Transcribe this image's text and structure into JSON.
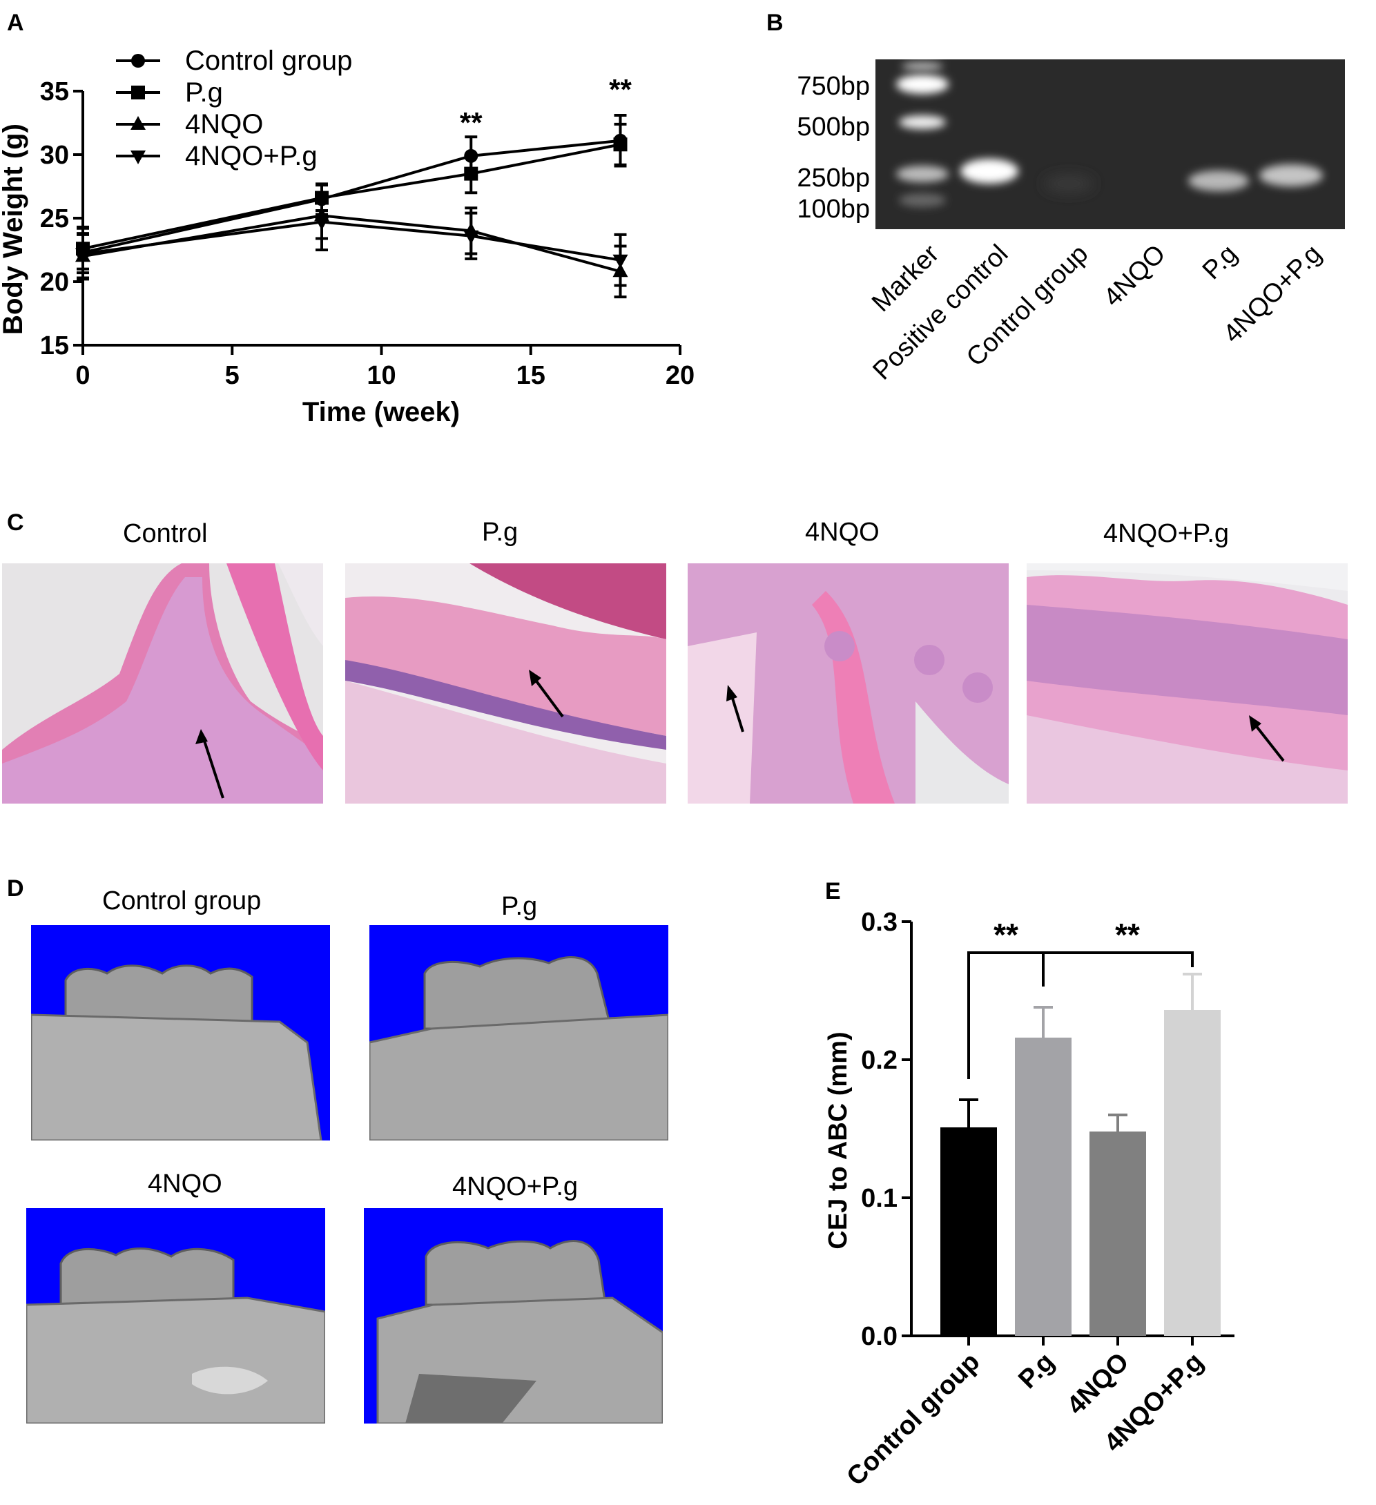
{
  "panels": {
    "a": "A",
    "b": "B",
    "c": "C",
    "d": "D",
    "e": "E"
  },
  "chart_a": {
    "type": "line",
    "xlabel": "Time (week)",
    "ylabel": "Body Weight (g)",
    "xlim": [
      0,
      20
    ],
    "ylim": [
      15,
      35
    ],
    "xticks": [
      "0",
      "5",
      "10",
      "15",
      "20"
    ],
    "yticks": [
      "15",
      "20",
      "25",
      "30",
      "35"
    ],
    "x": [
      0,
      8,
      13,
      18
    ],
    "legend_position": "top-left",
    "series": [
      {
        "name": "Control group",
        "marker": "circle",
        "values": [
          22.3,
          26.5,
          29.9,
          31.1
        ],
        "errors": [
          2.0,
          1.2,
          1.5,
          2.0
        ]
      },
      {
        "name": "P.g",
        "marker": "square",
        "values": [
          22.6,
          26.6,
          28.5,
          30.8
        ],
        "errors": [
          1.6,
          1.0,
          1.5,
          1.6
        ]
      },
      {
        "name": "4NQO",
        "marker": "triangle-up",
        "values": [
          22.0,
          25.2,
          24.0,
          20.8
        ],
        "errors": [
          1.8,
          1.8,
          1.8,
          2.0
        ]
      },
      {
        "name": "4NQO+P.g",
        "marker": "triangle-down",
        "values": [
          22.2,
          24.7,
          23.6,
          21.7
        ],
        "errors": [
          1.5,
          2.2,
          1.8,
          2.0
        ]
      }
    ],
    "annotations": [
      {
        "x": 13,
        "text": "**"
      },
      {
        "x": 18,
        "text": "**"
      }
    ]
  },
  "gel_b": {
    "markers": [
      "750bp",
      "500bp",
      "250bp",
      "100bp"
    ],
    "lanes": [
      "Marker",
      "Positive control",
      "Control group",
      "4NQO",
      "P.g",
      "4NQO+P.g"
    ]
  },
  "histology_c": {
    "titles": [
      "Control",
      "P.g",
      "4NQO",
      "4NQO+P.g"
    ]
  },
  "microct_d": {
    "titles": [
      "Control group",
      "P.g",
      "4NQO",
      "4NQO+P.g"
    ],
    "background": "#0000ff"
  },
  "chart_e": {
    "type": "bar",
    "ylabel": "CEJ to ABC (mm)",
    "categories": [
      "Control group",
      "P.g",
      "4NQO",
      "4NQO+P.g"
    ],
    "values": [
      0.151,
      0.216,
      0.148,
      0.236
    ],
    "errors": [
      0.02,
      0.022,
      0.012,
      0.026
    ],
    "colors": [
      "#000000",
      "#a3a3a7",
      "#808080",
      "#d3d3d3"
    ],
    "ylim": [
      0,
      0.3
    ],
    "yticks": [
      "0.0",
      "0.1",
      "0.2",
      "0.3"
    ],
    "significance": [
      "**",
      "**"
    ]
  }
}
